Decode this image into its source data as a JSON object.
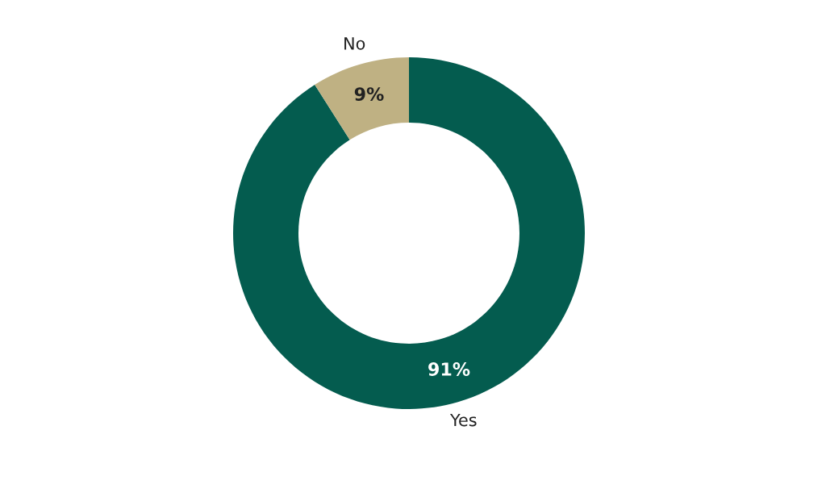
{
  "chart_data": {
    "type": "donut",
    "categories": [
      "Yes",
      "No"
    ],
    "values": [
      91,
      9
    ],
    "colors": [
      "#045c4f",
      "#bfb183"
    ],
    "value_labels": [
      "91%",
      "9%"
    ],
    "legend": false
  }
}
